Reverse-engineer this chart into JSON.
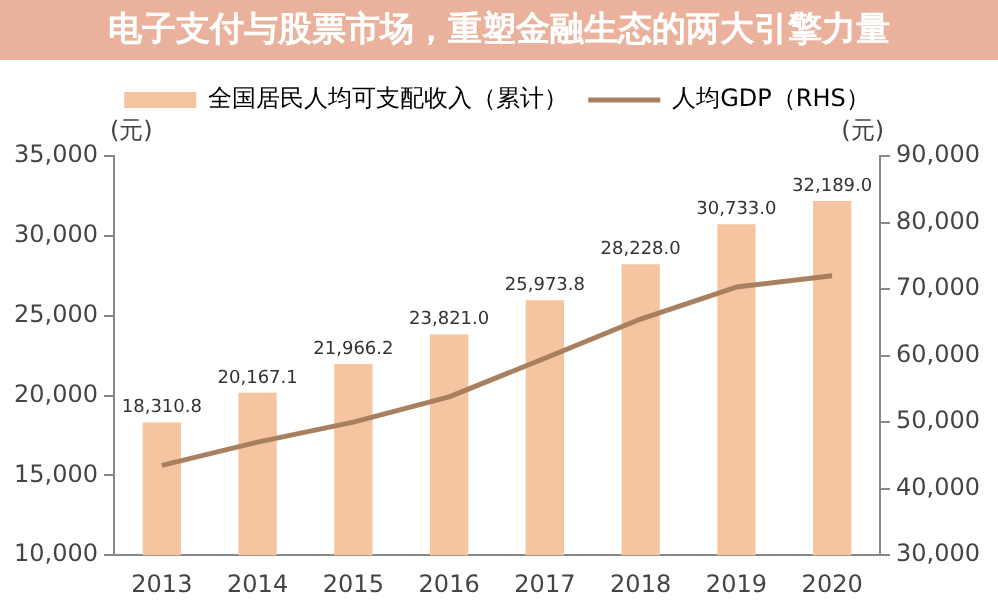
{
  "chart_data": {
    "type": "bar",
    "title": "电子支付与股票市场，重塑金融生态的两大引擎力量",
    "categories": [
      "2013",
      "2014",
      "2015",
      "2016",
      "2017",
      "2018",
      "2019",
      "2020"
    ],
    "series": [
      {
        "name": "全国居民人均可支配收入（累计）",
        "color": "#f5c4a0",
        "values": [
          18310.8,
          20167.1,
          21966.2,
          23821.0,
          25973.8,
          28228.0,
          30733.0,
          32189.0
        ],
        "value_labels": [
          "18,310.8",
          "20,167.1",
          "21,966.2",
          "23,821.0",
          "25,973.8",
          "28,228.0",
          "30,733.0",
          "32,189.0"
        ]
      },
      {
        "name": "人均GDP（RHS）",
        "type": "line",
        "axis": "y2",
        "color": "#a9805f",
        "values": [
          43500,
          47000,
          50000,
          53800,
          59600,
          65500,
          70300,
          72000
        ]
      }
    ],
    "ylabel": "(元)",
    "y2label": "(元)",
    "ylim": [
      10000,
      35000
    ],
    "yticks": [
      {
        "value": 10000,
        "label": "10,000"
      },
      {
        "value": 15000,
        "label": "15,000"
      },
      {
        "value": 20000,
        "label": "20,000"
      },
      {
        "value": 25000,
        "label": "25,000"
      },
      {
        "value": 30000,
        "label": "30,000"
      },
      {
        "value": 35000,
        "label": "35,000"
      }
    ],
    "y2lim": [
      30000,
      90000
    ],
    "y2ticks": [
      {
        "value": 30000,
        "label": "30,000"
      },
      {
        "value": 40000,
        "label": "40,000"
      },
      {
        "value": 50000,
        "label": "50,000"
      },
      {
        "value": 60000,
        "label": "60,000"
      },
      {
        "value": 70000,
        "label": "70,000"
      },
      {
        "value": 80000,
        "label": "80,000"
      },
      {
        "value": 90000,
        "label": "90,000"
      }
    ],
    "grid": false,
    "legend": "top",
    "marker": "none",
    "line_style": "solid"
  }
}
